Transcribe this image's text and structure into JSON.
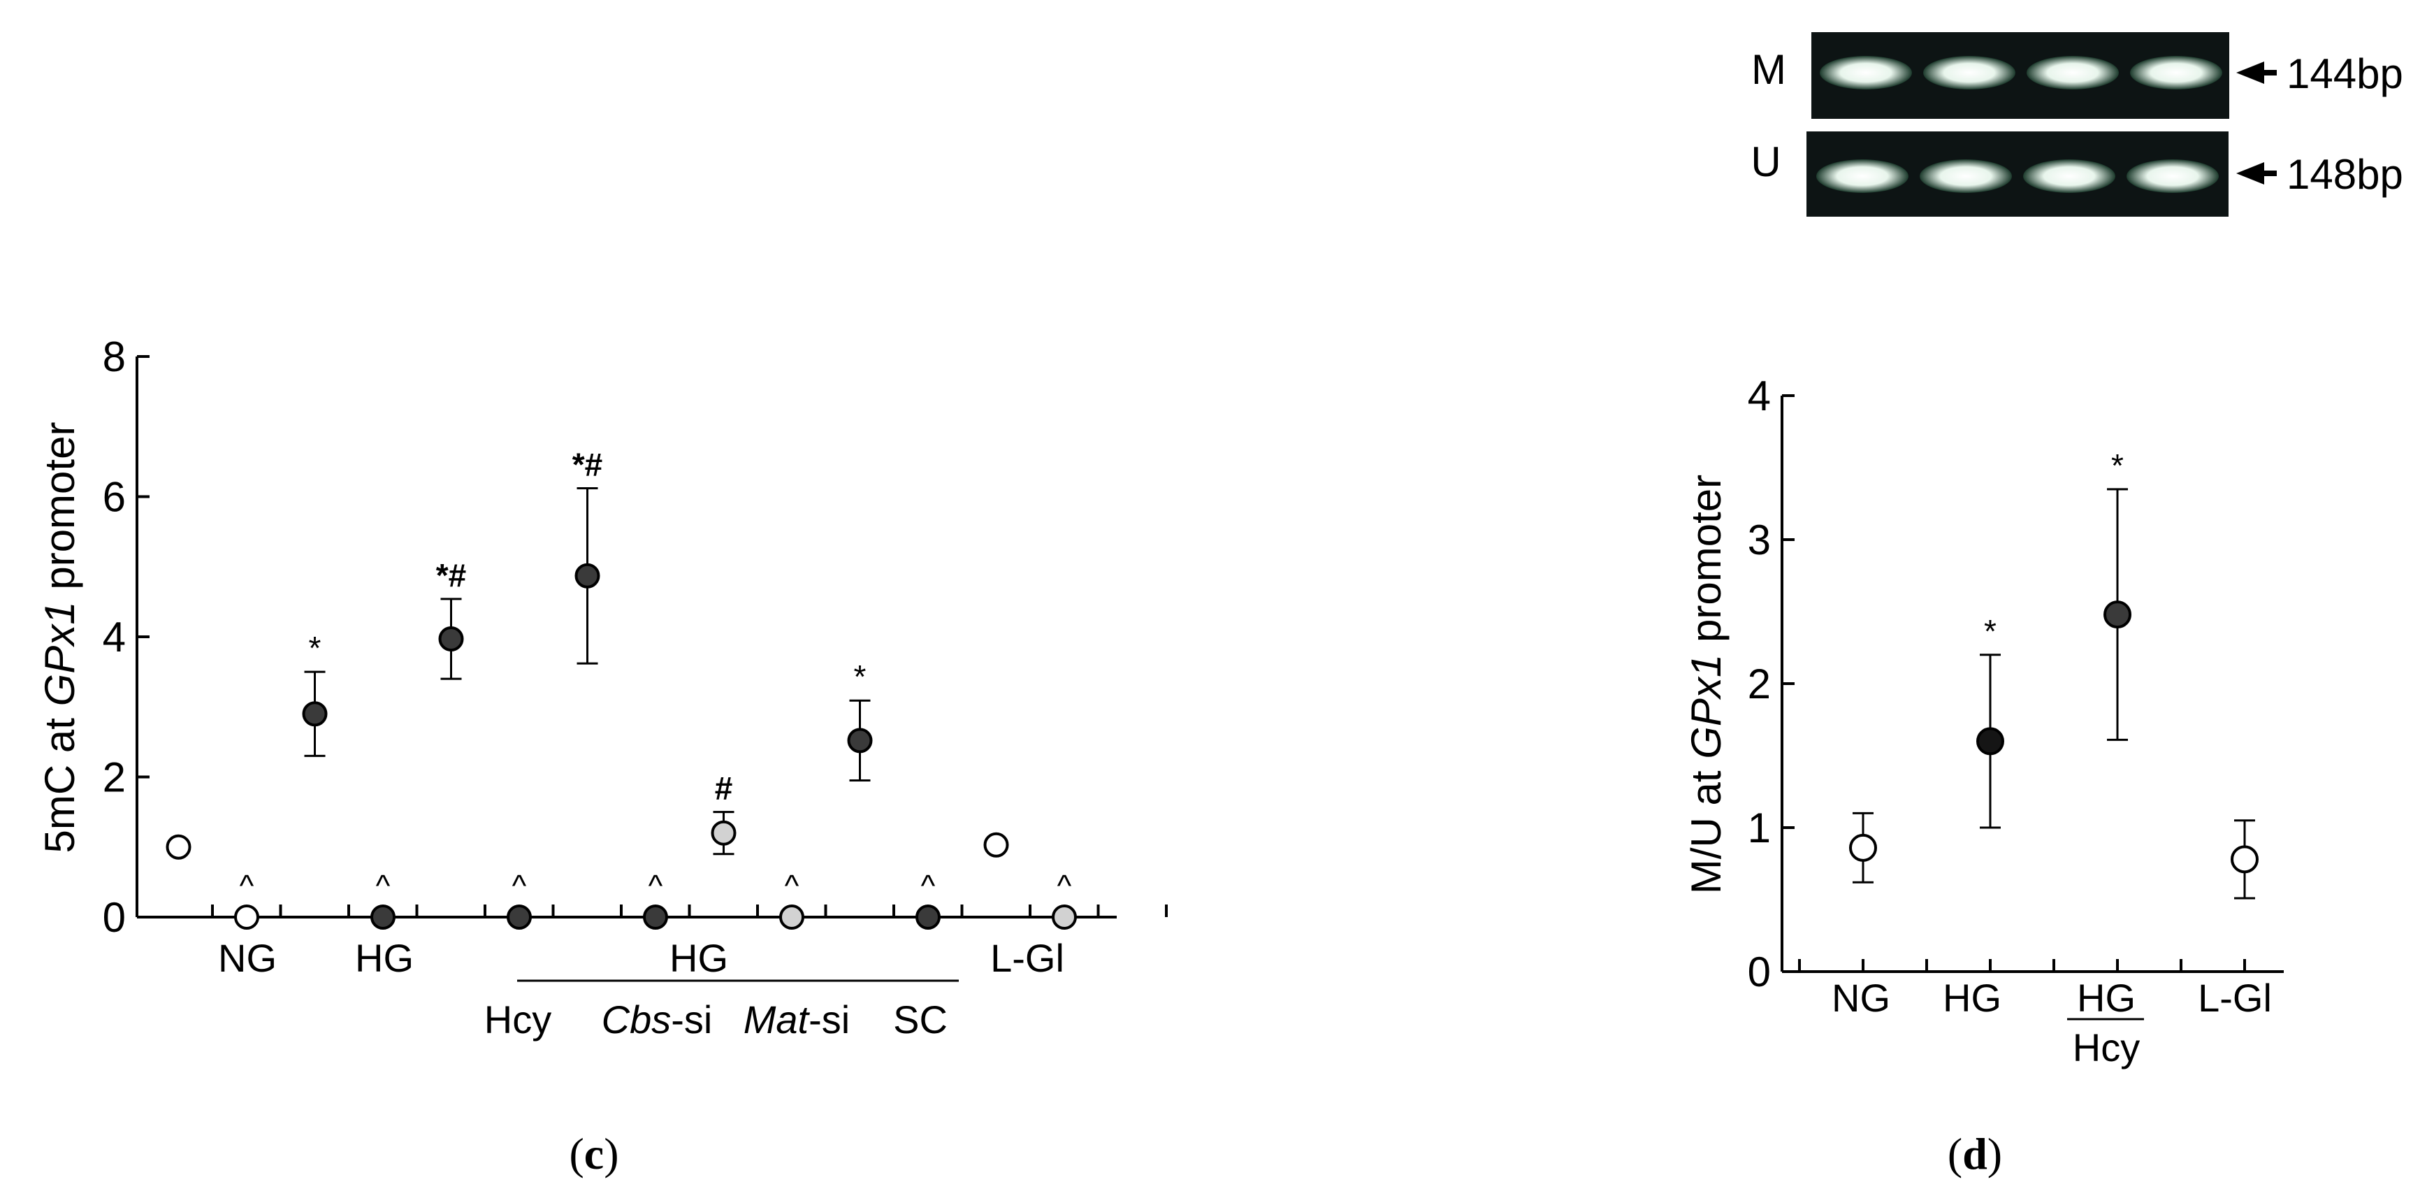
{
  "chart_data": [
    {
      "panel_label": "c",
      "type": "scatter",
      "y_axis": {
        "label_prefix": "5mC at ",
        "label_gene": "GPx1",
        "label_suffix": " promoter",
        "ylim": [
          0,
          8
        ],
        "ticks": [
          "0",
          "2",
          "4",
          "6",
          "8"
        ]
      },
      "category_labels": [
        {
          "text": "NG",
          "italic": ""
        },
        {
          "text": "HG",
          "italic": ""
        },
        {
          "text": "HG",
          "italic": ""
        },
        {
          "text": "Hcy",
          "italic": ""
        },
        {
          "text": "-si",
          "italic": "Cbs"
        },
        {
          "text": "-si",
          "italic": "Mat"
        },
        {
          "text": "SC",
          "italic": ""
        },
        {
          "text": "L-Gl",
          "italic": ""
        }
      ],
      "points": [
        {
          "x": 1,
          "y": 1.0,
          "err": 0,
          "fill": "white",
          "mark": ""
        },
        {
          "x": 2,
          "y": 0.0,
          "err": 0,
          "fill": "white",
          "mark": "^"
        },
        {
          "x": 3,
          "y": 2.9,
          "err": 0.6,
          "fill": "dark",
          "mark": "*"
        },
        {
          "x": 4,
          "y": 0.0,
          "err": 0,
          "fill": "dark",
          "mark": "^"
        },
        {
          "x": 5,
          "y": 3.97,
          "err": 0.57,
          "fill": "dark",
          "mark": "*#"
        },
        {
          "x": 6,
          "y": 0.0,
          "err": 0,
          "fill": "dark",
          "mark": "^"
        },
        {
          "x": 7,
          "y": 4.87,
          "err": 1.25,
          "fill": "dark",
          "mark": "*#"
        },
        {
          "x": 8,
          "y": 0.0,
          "err": 0,
          "fill": "dark",
          "mark": "^"
        },
        {
          "x": 9,
          "y": 1.2,
          "err": 0.3,
          "fill": "gray",
          "mark": "#"
        },
        {
          "x": 10,
          "y": 0.0,
          "err": 0,
          "fill": "gray",
          "mark": "^"
        },
        {
          "x": 11,
          "y": 2.52,
          "err": 0.57,
          "fill": "dark",
          "mark": "*"
        },
        {
          "x": 12,
          "y": 0.0,
          "err": 0,
          "fill": "dark",
          "mark": "^"
        },
        {
          "x": 13,
          "y": 1.03,
          "err": 0,
          "fill": "white",
          "mark": ""
        },
        {
          "x": 14,
          "y": 0.0,
          "err": 0,
          "fill": "gray",
          "mark": "^"
        }
      ]
    },
    {
      "panel_label": "d",
      "type": "scatter",
      "gel": {
        "rows": [
          {
            "label": "M",
            "size": "144bp"
          },
          {
            "label": "U",
            "size": "148bp"
          }
        ],
        "lanes": 4
      },
      "y_axis": {
        "label_prefix": "M/U at ",
        "label_gene": "GPx1",
        "label_suffix": " promoter",
        "ylim": [
          0,
          4
        ],
        "ticks": [
          "0",
          "1",
          "2",
          "3",
          "4"
        ]
      },
      "categories": [
        "NG",
        "HG",
        "HG",
        "L-Gl"
      ],
      "category_sublabel": "Hcy",
      "points": [
        {
          "x": 1,
          "y": 0.86,
          "err": 0.24,
          "fill": "white",
          "mark": ""
        },
        {
          "x": 2,
          "y": 1.6,
          "err": 0.6,
          "fill": "black",
          "mark": "*"
        },
        {
          "x": 3,
          "y": 2.48,
          "err": 0.87,
          "fill": "dark",
          "mark": "*"
        },
        {
          "x": 4,
          "y": 0.78,
          "err": 0.27,
          "fill": "white",
          "mark": ""
        }
      ]
    }
  ],
  "colors": {
    "dark": "#3a3a3a",
    "black": "#151515",
    "gray": "#d2d2d2",
    "white": "#ffffff",
    "gel_bg": "#0d1414",
    "band": "#e8f5ec"
  }
}
